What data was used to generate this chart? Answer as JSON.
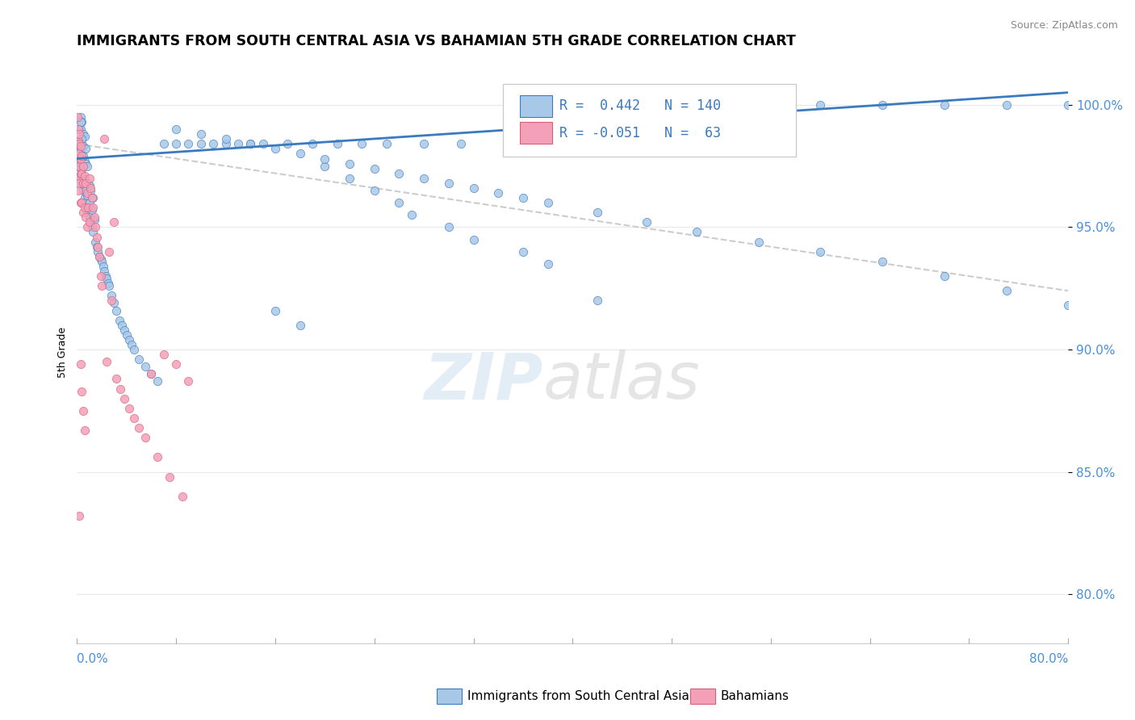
{
  "title": "IMMIGRANTS FROM SOUTH CENTRAL ASIA VS BAHAMIAN 5TH GRADE CORRELATION CHART",
  "source": "Source: ZipAtlas.com",
  "ylabel": "5th Grade",
  "yticks": [
    "80.0%",
    "85.0%",
    "90.0%",
    "95.0%",
    "100.0%"
  ],
  "ytick_vals": [
    0.8,
    0.85,
    0.9,
    0.95,
    1.0
  ],
  "xlim": [
    0.0,
    0.8
  ],
  "ylim": [
    0.78,
    1.018
  ],
  "legend_blue_label": "Immigrants from South Central Asia",
  "legend_pink_label": "Bahamians",
  "R_blue": 0.442,
  "N_blue": 140,
  "R_pink": -0.051,
  "N_pink": 63,
  "blue_color": "#a8c8e8",
  "blue_line_color": "#3a7abf",
  "pink_color": "#f4a0b8",
  "pink_line_color": "#d4607a",
  "blue_trend": [
    0.0,
    0.978,
    0.8,
    1.005
  ],
  "pink_trend": [
    0.0,
    0.984,
    0.8,
    0.924
  ],
  "blue_scatter_x": [
    0.001,
    0.001,
    0.001,
    0.002,
    0.002,
    0.002,
    0.002,
    0.003,
    0.003,
    0.003,
    0.003,
    0.003,
    0.003,
    0.004,
    0.004,
    0.004,
    0.004,
    0.004,
    0.005,
    0.005,
    0.005,
    0.005,
    0.005,
    0.006,
    0.006,
    0.006,
    0.006,
    0.007,
    0.007,
    0.007,
    0.007,
    0.008,
    0.008,
    0.008,
    0.009,
    0.009,
    0.01,
    0.01,
    0.01,
    0.011,
    0.011,
    0.012,
    0.012,
    0.013,
    0.013,
    0.014,
    0.015,
    0.016,
    0.017,
    0.018,
    0.019,
    0.02,
    0.021,
    0.022,
    0.023,
    0.024,
    0.025,
    0.026,
    0.028,
    0.03,
    0.032,
    0.034,
    0.036,
    0.038,
    0.04,
    0.042,
    0.044,
    0.046,
    0.05,
    0.055,
    0.06,
    0.065,
    0.07,
    0.08,
    0.09,
    0.1,
    0.11,
    0.12,
    0.13,
    0.14,
    0.15,
    0.17,
    0.19,
    0.21,
    0.23,
    0.25,
    0.28,
    0.31,
    0.35,
    0.4,
    0.45,
    0.5,
    0.55,
    0.6,
    0.65,
    0.7,
    0.75,
    0.8,
    0.2,
    0.22,
    0.24,
    0.26,
    0.27,
    0.3,
    0.32,
    0.36,
    0.38,
    0.42,
    0.16,
    0.18,
    0.08,
    0.1,
    0.12,
    0.14,
    0.16,
    0.18,
    0.2,
    0.22,
    0.24,
    0.26,
    0.28,
    0.3,
    0.32,
    0.34,
    0.36,
    0.38,
    0.42,
    0.46,
    0.5,
    0.55,
    0.6,
    0.65,
    0.7,
    0.75,
    0.8,
    0.003,
    0.004,
    0.005
  ],
  "blue_scatter_y": [
    0.978,
    0.982,
    0.985,
    0.975,
    0.98,
    0.984,
    0.99,
    0.97,
    0.974,
    0.978,
    0.982,
    0.99,
    0.995,
    0.968,
    0.972,
    0.976,
    0.984,
    0.993,
    0.965,
    0.97,
    0.975,
    0.983,
    0.988,
    0.962,
    0.967,
    0.977,
    0.987,
    0.96,
    0.965,
    0.976,
    0.982,
    0.958,
    0.963,
    0.975,
    0.956,
    0.968,
    0.954,
    0.96,
    0.967,
    0.952,
    0.965,
    0.95,
    0.957,
    0.948,
    0.962,
    0.953,
    0.944,
    0.942,
    0.94,
    0.938,
    0.937,
    0.936,
    0.934,
    0.932,
    0.93,
    0.929,
    0.927,
    0.926,
    0.922,
    0.919,
    0.916,
    0.912,
    0.91,
    0.908,
    0.906,
    0.904,
    0.902,
    0.9,
    0.896,
    0.893,
    0.89,
    0.887,
    0.984,
    0.984,
    0.984,
    0.984,
    0.984,
    0.984,
    0.984,
    0.984,
    0.984,
    0.984,
    0.984,
    0.984,
    0.984,
    0.984,
    0.984,
    0.984,
    0.984,
    0.984,
    0.984,
    0.984,
    0.984,
    1.0,
    1.0,
    1.0,
    1.0,
    1.0,
    0.975,
    0.97,
    0.965,
    0.96,
    0.955,
    0.95,
    0.945,
    0.94,
    0.935,
    0.92,
    0.916,
    0.91,
    0.99,
    0.988,
    0.986,
    0.984,
    0.982,
    0.98,
    0.978,
    0.976,
    0.974,
    0.972,
    0.97,
    0.968,
    0.966,
    0.964,
    0.962,
    0.96,
    0.956,
    0.952,
    0.948,
    0.944,
    0.94,
    0.936,
    0.93,
    0.924,
    0.918,
    0.993,
    0.986,
    0.979
  ],
  "pink_scatter_x": [
    0.0005,
    0.001,
    0.001,
    0.001,
    0.001,
    0.001,
    0.002,
    0.002,
    0.002,
    0.002,
    0.003,
    0.003,
    0.003,
    0.003,
    0.004,
    0.004,
    0.004,
    0.005,
    0.005,
    0.005,
    0.006,
    0.006,
    0.007,
    0.007,
    0.008,
    0.008,
    0.009,
    0.01,
    0.01,
    0.011,
    0.012,
    0.013,
    0.014,
    0.015,
    0.016,
    0.017,
    0.018,
    0.019,
    0.02,
    0.022,
    0.024,
    0.026,
    0.028,
    0.03,
    0.032,
    0.035,
    0.038,
    0.042,
    0.046,
    0.05,
    0.055,
    0.06,
    0.065,
    0.07,
    0.075,
    0.08,
    0.085,
    0.09,
    0.002,
    0.003,
    0.004,
    0.005,
    0.006
  ],
  "pink_scatter_y": [
    0.995,
    0.99,
    0.985,
    0.98,
    0.97,
    0.965,
    0.988,
    0.984,
    0.975,
    0.968,
    0.983,
    0.978,
    0.972,
    0.96,
    0.979,
    0.972,
    0.96,
    0.975,
    0.968,
    0.956,
    0.971,
    0.958,
    0.968,
    0.954,
    0.964,
    0.95,
    0.958,
    0.97,
    0.952,
    0.966,
    0.962,
    0.958,
    0.954,
    0.95,
    0.946,
    0.942,
    0.938,
    0.93,
    0.926,
    0.986,
    0.895,
    0.94,
    0.92,
    0.952,
    0.888,
    0.884,
    0.88,
    0.876,
    0.872,
    0.868,
    0.864,
    0.89,
    0.856,
    0.898,
    0.848,
    0.894,
    0.84,
    0.887,
    0.832,
    0.894,
    0.883,
    0.875,
    0.867
  ]
}
